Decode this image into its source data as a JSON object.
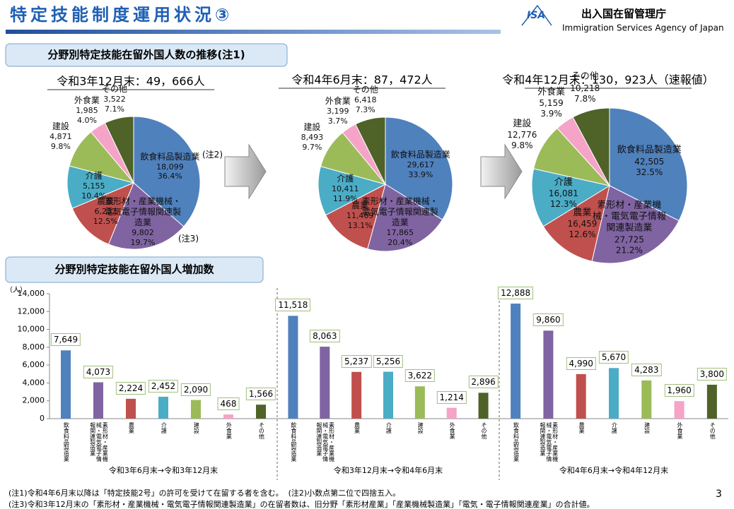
{
  "header": {
    "title": "特定技能制度運用状況③",
    "logo": "ISA",
    "agency_name": "出入国在留管理庁",
    "agency_en": "Immigration Services Agency of Japan",
    "page": "3"
  },
  "sections": [
    "分野別特定技能在留外国人数の推移(注1)",
    "分野別特定技能在留外国人増加数"
  ],
  "chart_data": [
    {
      "type": "pie",
      "title": "令和3年12月末：49，666人",
      "categories": [
        "飲食料品製造業",
        "素形材・産業機械・電気電子情報関連製造業",
        "農業",
        "介護",
        "建設",
        "外食業",
        "その他"
      ],
      "values": [
        18099,
        9802,
        6232,
        5155,
        4871,
        1985,
        3522
      ],
      "value_labels": [
        "18,099",
        "9,802",
        "6,232",
        "5,155",
        "4,871",
        "1,985",
        "3,522"
      ],
      "percents": [
        36.4,
        19.7,
        12.5,
        10.4,
        9.8,
        4.0,
        7.1
      ],
      "percent_labels": [
        "36.4%",
        "19.7%",
        "12.5%",
        "10.4%",
        "9.8%",
        "4.0%",
        "7.1%"
      ],
      "colors": [
        "#4f81bd",
        "#8064a2",
        "#c0504d",
        "#4bacc6",
        "#9bbb59",
        "#f5a3c7",
        "#4f6228"
      ],
      "annotations": [
        "(注2)",
        "(注3)"
      ]
    },
    {
      "type": "pie",
      "title": "令和4年6月末：87，472人",
      "categories": [
        "飲食料品製造業",
        "素形材・産業機械・電気電子情報関連製造業",
        "農業",
        "介護",
        "建設",
        "外食業",
        "その他"
      ],
      "values": [
        29617,
        17865,
        11469,
        10411,
        8493,
        3199,
        6418
      ],
      "value_labels": [
        "29,617",
        "17,865",
        "11,469",
        "10,411",
        "8,493",
        "3,199",
        "6,418"
      ],
      "percents": [
        33.9,
        20.4,
        13.1,
        11.9,
        9.7,
        3.7,
        7.3
      ],
      "percent_labels": [
        "33.9%",
        "20.4%",
        "13.1%",
        "11.9%",
        "9.7%",
        "3.7%",
        "7.3%"
      ],
      "colors": [
        "#4f81bd",
        "#8064a2",
        "#c0504d",
        "#4bacc6",
        "#9bbb59",
        "#f5a3c7",
        "#4f6228"
      ]
    },
    {
      "type": "pie",
      "title": "令和4年12月末：130，923人（速報値）",
      "categories": [
        "飲食料品製造業",
        "素形材・産業機械・電気電子情報関連製造業",
        "農業",
        "介護",
        "建設",
        "外食業",
        "その他"
      ],
      "values": [
        42505,
        27725,
        16459,
        16081,
        12776,
        5159,
        10218
      ],
      "value_labels": [
        "42,505",
        "27,725",
        "16,459",
        "16,081",
        "12,776",
        "5,159",
        "10,218"
      ],
      "percents": [
        32.5,
        21.2,
        12.6,
        12.3,
        9.8,
        3.9,
        7.8
      ],
      "percent_labels": [
        "32.5%",
        "21.2%",
        "12.6%",
        "12.3%",
        "9.8%",
        "3.9%",
        "7.8%"
      ],
      "colors": [
        "#4f81bd",
        "#8064a2",
        "#c0504d",
        "#4bacc6",
        "#9bbb59",
        "#f5a3c7",
        "#4f6228"
      ]
    },
    {
      "type": "bar",
      "y_label": "（人）",
      "categories": [
        "飲食料品製造業",
        "素形材・産業機械・電気電子情報関連製造業",
        "農業",
        "介護",
        "建設",
        "外食業",
        "その他"
      ],
      "colors": [
        "#4f81bd",
        "#8064a2",
        "#c0504d",
        "#4bacc6",
        "#9bbb59",
        "#f5a3c7",
        "#4f6228"
      ],
      "ylim": [
        0,
        14000
      ],
      "yticks": [
        0,
        {
          "value": 2000,
          "label": "2,000"
        },
        {
          "value": 4000,
          "label": "4,000"
        },
        {
          "value": 6000,
          "label": "6,000"
        },
        {
          "value": 8000,
          "label": "8,000"
        },
        {
          "value": 10000,
          "label": "10,000"
        },
        {
          "value": 12000,
          "label": "12,000"
        },
        {
          "value": 14000,
          "label": "14,000"
        }
      ],
      "groups": [
        {
          "label": "令和3年6月末→令和3年12月末",
          "values": [
            7649,
            4073,
            2224,
            2452,
            2090,
            468,
            1566
          ],
          "value_labels": [
            "7,649",
            "4,073",
            "2,224",
            "2,452",
            "2,090",
            "468",
            "1,566"
          ]
        },
        {
          "label": "令和3年12月末→令和4年6月末",
          "values": [
            11518,
            8063,
            5237,
            5256,
            3622,
            1214,
            2896
          ],
          "value_labels": [
            "11,518",
            "8,063",
            "5,237",
            "5,256",
            "3,622",
            "1,214",
            "2,896"
          ]
        },
        {
          "label": "令和4年6月末→令和4年12月末",
          "values": [
            12888,
            9860,
            4990,
            5670,
            4283,
            1960,
            3800
          ],
          "value_labels": [
            "12,888",
            "9,860",
            "4,990",
            "5,670",
            "4,283",
            "1,960",
            "3,800"
          ]
        }
      ]
    }
  ],
  "notes": [
    "(注1)令和4年6月末以降は「特定技能2号」の許可を受けて在留する者を含む。",
    "(注2)小数点第二位で四捨五入。",
    "(注3)令和3年12月末の「素形材・産業機械・電気電子情報関連製造業」の在留者数は、旧分野「素形材産業」「産業機械製造業」「電気・電子情報関連産業」の合計値。"
  ]
}
